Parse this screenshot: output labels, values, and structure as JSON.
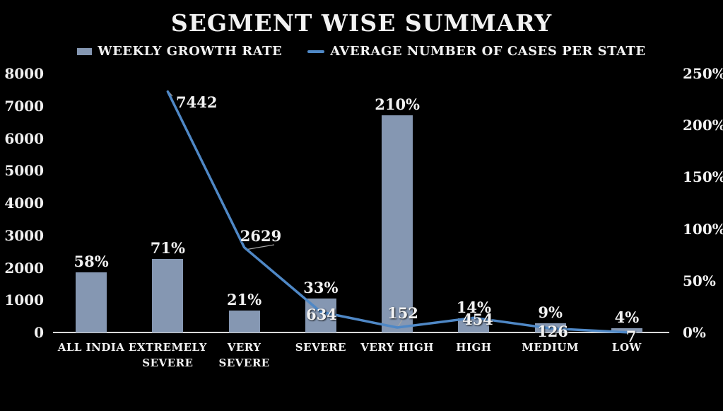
{
  "chart_data": {
    "type": "combo",
    "title": "SEGMENT WISE SUMMARY",
    "categories": [
      "ALL INDIA",
      "EXTREMELY SEVERE",
      "VERY SEVERE",
      "SEVERE",
      "VERY HIGH",
      "HIGH",
      "MEDIUM",
      "LOW"
    ],
    "series": [
      {
        "name": "WEEKLY GROWTH RATE",
        "chart_type": "bar",
        "axis": "right",
        "color": "#8597B2",
        "values": [
          58,
          71,
          21,
          33,
          210,
          14,
          9,
          4
        ],
        "value_labels": [
          "58%",
          "71%",
          "21%",
          "33%",
          "210%",
          "14%",
          "9%",
          "4%"
        ]
      },
      {
        "name": "AVERAGE NUMBER OF CASES PER STATE",
        "chart_type": "line",
        "axis": "left",
        "color": "#4F88C6",
        "values": [
          null,
          7442,
          2629,
          634,
          152,
          454,
          126,
          7
        ],
        "value_labels": [
          null,
          "7442",
          "2629",
          "634",
          "152",
          "454",
          "126",
          "7"
        ]
      }
    ],
    "left_axis": {
      "min": 0,
      "max": 8000,
      "tick_labels": [
        "0",
        "1000",
        "2000",
        "3000",
        "4000",
        "5000",
        "6000",
        "7000",
        "8000"
      ]
    },
    "right_axis": {
      "min": 0,
      "max": 250,
      "tick_labels": [
        "0%",
        "50%",
        "100%",
        "150%",
        "200%",
        "250%"
      ]
    },
    "grid": false,
    "legend_position": "top",
    "background": "#000000",
    "text_color": "#F2F2F2",
    "axis_line_color": "#D9D9D9"
  }
}
